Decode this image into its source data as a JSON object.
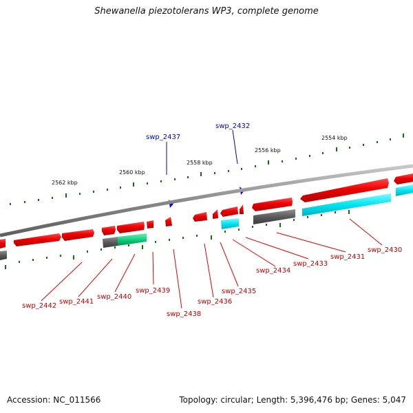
{
  "title": "Shewanella piezotolerans WP3, complete genome",
  "footer": {
    "accession": "Accession: NC_011566",
    "summary": "Topology: circular; Length: 5,396,476 bp; Genes: 5,047"
  },
  "kbp_labels": [
    "2562 kbp",
    "2560 kbp",
    "2558 kbp",
    "2556 kbp",
    "2554 kbp"
  ],
  "genes_plus_labels": [
    "swp_2437",
    "swp_2432"
  ],
  "genes_minus_labels": [
    "swp_2442",
    "swp_2441",
    "swp_2440",
    "swp_2439",
    "swp_2438",
    "swp_2436",
    "swp_2435",
    "swp_2434",
    "swp_2433",
    "swp_2431",
    "swp_2430"
  ],
  "colors": {
    "cds": "#e60000",
    "rna": "#00e0e0",
    "gene_other": "#606060",
    "misc": "#00c070",
    "plus_marker": "#0000ee",
    "backbone": "#8a8a8a",
    "tick_minor": "#107010",
    "label_minus": "#c00000",
    "label_plus": "#0000cc"
  }
}
